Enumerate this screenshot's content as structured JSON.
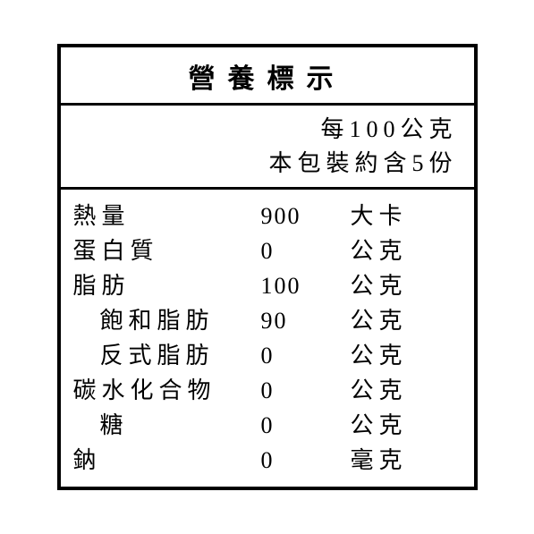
{
  "title": "營養標示",
  "serving": {
    "line1": "每100公克",
    "line2": "本包裝約含5份"
  },
  "nutrients": [
    {
      "label": "熱量",
      "value": "900",
      "unit": "大卡",
      "indent": false
    },
    {
      "label": "蛋白質",
      "value": "0",
      "unit": "公克",
      "indent": false
    },
    {
      "label": "脂肪",
      "value": "100",
      "unit": "公克",
      "indent": false
    },
    {
      "label": "飽和脂肪",
      "value": "90",
      "unit": "公克",
      "indent": true
    },
    {
      "label": "反式脂肪",
      "value": "0",
      "unit": "公克",
      "indent": true
    },
    {
      "label": "碳水化合物",
      "value": "0",
      "unit": "公克",
      "indent": false
    },
    {
      "label": "糖",
      "value": "0",
      "unit": "公克",
      "indent": true
    },
    {
      "label": "鈉",
      "value": "0",
      "unit": "毫克",
      "indent": false
    }
  ],
  "colors": {
    "background": "#ffffff",
    "text": "#000000",
    "border": "#000000"
  },
  "typography": {
    "title_fontsize": 30,
    "body_fontsize": 26,
    "title_letter_spacing": 14,
    "body_letter_spacing": 6
  }
}
